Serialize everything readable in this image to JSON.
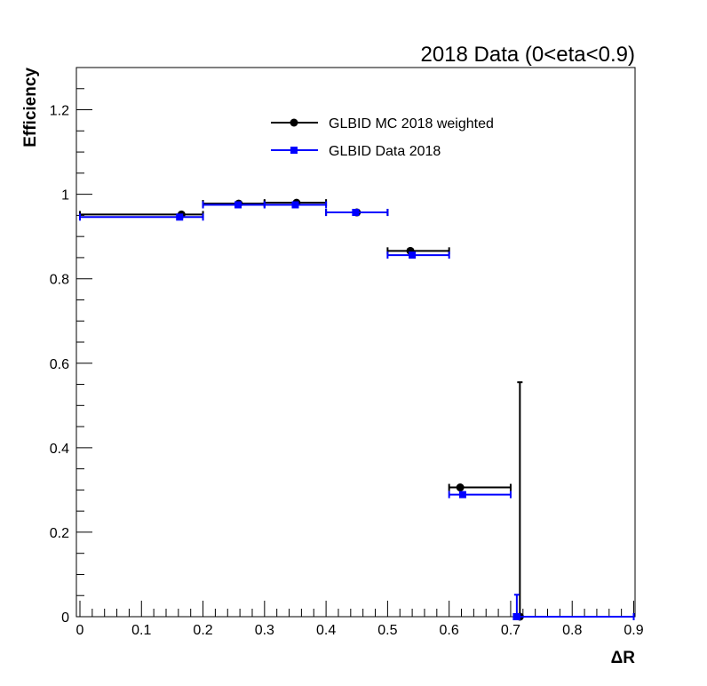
{
  "chart_data": {
    "type": "scatter",
    "title": "2018 Data (0<eta<0.9)",
    "xlabel": "ΔR",
    "ylabel": "Efficiency",
    "xlim": [
      0,
      0.9
    ],
    "ylim": [
      0,
      1.3
    ],
    "x_ticks": [
      0,
      0.1,
      0.2,
      0.3,
      0.4,
      0.5,
      0.6,
      0.7,
      0.8,
      0.9
    ],
    "x_tick_labels": [
      "0",
      "0.1",
      "0.2",
      "0.3",
      "0.4",
      "0.5",
      "0.6",
      "0.7",
      "0.8",
      "0.9"
    ],
    "y_ticks": [
      0,
      0.2,
      0.4,
      0.6,
      0.8,
      1.0,
      1.2
    ],
    "y_tick_labels": [
      "0",
      "0.2",
      "0.4",
      "0.6",
      "0.8",
      "1",
      "1.2"
    ],
    "grid": false,
    "legend_position": "top-center",
    "series": [
      {
        "name": "GLBID MC 2018 weighted",
        "color": "#000000",
        "marker": "circle",
        "points": [
          {
            "x": 0.165,
            "y": 0.952,
            "xlo": 0.0,
            "xhi": 0.2,
            "ylo": 0.952,
            "yhi": 0.952
          },
          {
            "x": 0.258,
            "y": 0.978,
            "xlo": 0.2,
            "xhi": 0.3,
            "ylo": 0.978,
            "yhi": 0.978
          },
          {
            "x": 0.352,
            "y": 0.98,
            "xlo": 0.3,
            "xhi": 0.4,
            "ylo": 0.98,
            "yhi": 0.98
          },
          {
            "x": 0.45,
            "y": 0.957,
            "xlo": 0.4,
            "xhi": 0.5,
            "ylo": 0.957,
            "yhi": 0.957
          },
          {
            "x": 0.537,
            "y": 0.866,
            "xlo": 0.5,
            "xhi": 0.6,
            "ylo": 0.866,
            "yhi": 0.866
          },
          {
            "x": 0.618,
            "y": 0.306,
            "xlo": 0.6,
            "xhi": 0.7,
            "ylo": 0.306,
            "yhi": 0.306
          },
          {
            "x": 0.715,
            "y": 0.0,
            "xlo": 0.715,
            "xhi": 0.715,
            "ylo": 0.0,
            "yhi": 0.555
          }
        ]
      },
      {
        "name": "GLBID Data 2018",
        "color": "#0000ff",
        "marker": "square",
        "points": [
          {
            "x": 0.162,
            "y": 0.946,
            "xlo": 0.0,
            "xhi": 0.2,
            "ylo": 0.946,
            "yhi": 0.946
          },
          {
            "x": 0.257,
            "y": 0.975,
            "xlo": 0.2,
            "xhi": 0.3,
            "ylo": 0.975,
            "yhi": 0.975
          },
          {
            "x": 0.35,
            "y": 0.975,
            "xlo": 0.3,
            "xhi": 0.4,
            "ylo": 0.975,
            "yhi": 0.975
          },
          {
            "x": 0.448,
            "y": 0.957,
            "xlo": 0.4,
            "xhi": 0.5,
            "ylo": 0.957,
            "yhi": 0.957
          },
          {
            "x": 0.54,
            "y": 0.856,
            "xlo": 0.5,
            "xhi": 0.6,
            "ylo": 0.856,
            "yhi": 0.856
          },
          {
            "x": 0.622,
            "y": 0.289,
            "xlo": 0.6,
            "xhi": 0.7,
            "ylo": 0.289,
            "yhi": 0.289
          },
          {
            "x": 0.71,
            "y": 0.0,
            "xlo": 0.705,
            "xhi": 0.9,
            "ylo": 0.0,
            "yhi": 0.052
          }
        ]
      }
    ]
  }
}
